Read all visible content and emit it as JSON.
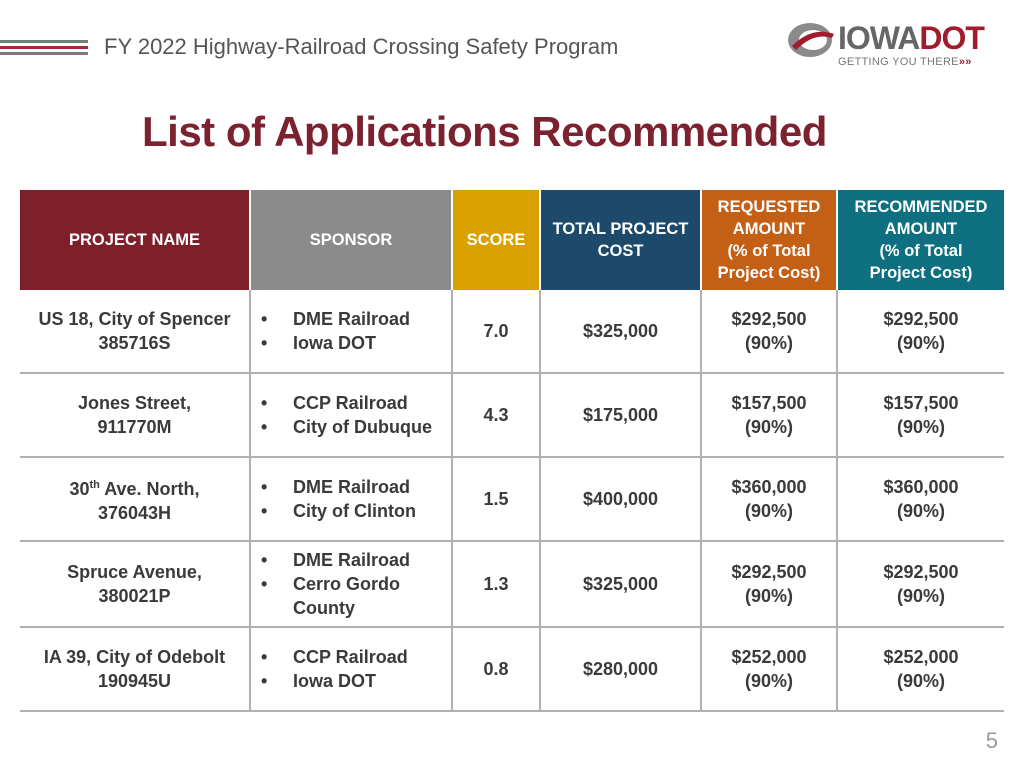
{
  "header": {
    "title": "FY 2022 Highway-Railroad Crossing Safety Program",
    "logo_brand_a": "IOWA",
    "logo_brand_b": "DOT",
    "logo_tagline": "GETTING YOU THERE",
    "logo_tagline_arrows": "»»"
  },
  "page_title": "List of Applications Recommended",
  "table": {
    "headers": {
      "project_name": "PROJECT NAME",
      "sponsor": "SPONSOR",
      "score": "SCORE",
      "total_cost": "TOTAL PROJECT COST",
      "requested_l1": "REQUESTED",
      "requested_l2": "AMOUNT",
      "requested_l3": "(% of Total",
      "requested_l4": "Project Cost)",
      "recommended_l1": "RECOMMENDED",
      "recommended_l2": "AMOUNT",
      "recommended_l3": "(% of Total",
      "recommended_l4": "Project Cost)"
    },
    "rows": [
      {
        "name_line1": "US 18, City of Spencer",
        "name_line2": "385716S",
        "sponsors": [
          "DME Railroad",
          "Iowa DOT"
        ],
        "score": "7.0",
        "total_cost": "$325,000",
        "requested": "$292,500",
        "requested_pct": "(90%)",
        "recommended": "$292,500",
        "recommended_pct": "(90%)"
      },
      {
        "name_line1": "Jones Street,",
        "name_line2": "911770M",
        "sponsors": [
          "CCP Railroad",
          "City of Dubuque"
        ],
        "score": "4.3",
        "total_cost": "$175,000",
        "requested": "$157,500",
        "requested_pct": "(90%)",
        "recommended": "$157,500",
        "recommended_pct": "(90%)"
      },
      {
        "name_line1_pre": "30",
        "name_line1_sup": "th",
        "name_line1_post": " Ave. North,",
        "name_line2": "376043H",
        "sponsors": [
          "DME Railroad",
          "City of Clinton"
        ],
        "score": "1.5",
        "total_cost": "$400,000",
        "requested": "$360,000",
        "requested_pct": "(90%)",
        "recommended": "$360,000",
        "recommended_pct": "(90%)"
      },
      {
        "name_line1": "Spruce Avenue,",
        "name_line2": "380021P",
        "sponsors": [
          "DME Railroad",
          "Cerro Gordo County"
        ],
        "score": "1.3",
        "total_cost": "$325,000",
        "requested": "$292,500",
        "requested_pct": "(90%)",
        "recommended": "$292,500",
        "recommended_pct": "(90%)"
      },
      {
        "name_line1": "IA 39, City of Odebolt",
        "name_line2": "190945U",
        "sponsors": [
          "CCP Railroad",
          "Iowa DOT"
        ],
        "score": "0.8",
        "total_cost": "$280,000",
        "requested": "$252,000",
        "requested_pct": "(90%)",
        "recommended": "$252,000",
        "recommended_pct": "(90%)"
      }
    ]
  },
  "page_number": "5",
  "colors": {
    "title": "#7c2130",
    "header_name": "#7d2029",
    "header_sponsor": "#8b8b8b",
    "header_score": "#d9a100",
    "header_total": "#1d4a6b",
    "header_requested": "#c36016",
    "header_recommended": "#0d6f7f"
  }
}
